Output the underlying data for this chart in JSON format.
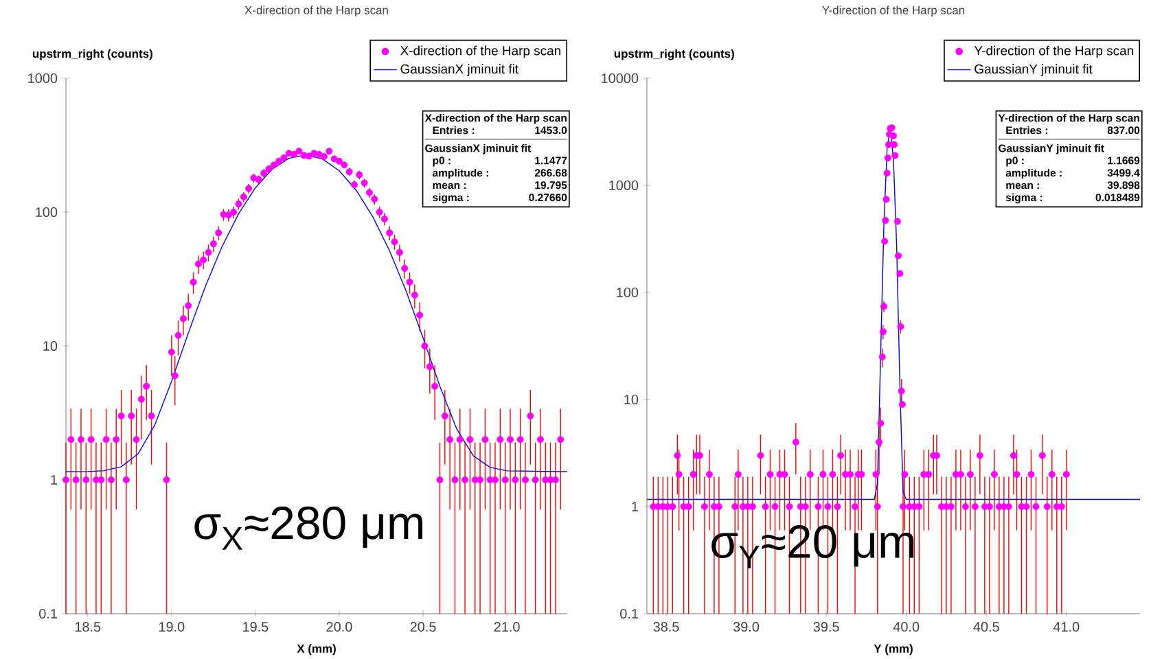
{
  "chart_data": [
    {
      "type": "scatter",
      "title": "X-direction of the Harp scan",
      "xlabel": "X (mm)",
      "ylabel": "upstrm_right (counts)",
      "log": true,
      "legend": "top right",
      "marker": "circle",
      "xlim": [
        18.37,
        21.36
      ],
      "ylim": [
        0.1,
        1000
      ],
      "xticks": [
        18.5,
        {
          "value": 19,
          "label": "19.0"
        },
        19.5,
        {
          "value": 20,
          "label": "20.0"
        },
        20.5,
        {
          "value": 21,
          "label": "21.0"
        }
      ],
      "yticks": [
        0.1,
        1,
        10,
        100,
        1000
      ],
      "annotations": [
        "X-direction of the Harp scan",
        "Entries :",
        "1453.0",
        "GaussianX jminuit fit",
        "p0 :",
        "1.1477",
        "amplitude :",
        "266.68",
        "mean :",
        "19.795",
        "sigma :",
        "0.27660",
        "σ$_{X}$≈280 μm"
      ],
      "series": [
        {
          "name": "X-direction of the Harp scan",
          "color": "#ff00ff",
          "x": [
            18.37,
            18.4,
            18.43,
            18.46,
            18.49,
            18.52,
            18.55,
            18.58,
            18.61,
            18.64,
            18.67,
            18.7,
            18.73,
            18.76,
            18.79,
            18.82,
            18.85,
            18.88,
            18.97,
            19.0,
            19.02,
            19.04,
            19.07,
            19.1,
            19.13,
            19.16,
            19.19,
            19.22,
            19.25,
            19.28,
            19.31,
            19.34,
            19.37,
            19.4,
            19.43,
            19.46,
            19.49,
            19.52,
            19.55,
            19.58,
            19.61,
            19.64,
            19.67,
            19.7,
            19.73,
            19.76,
            19.79,
            19.82,
            19.85,
            19.88,
            19.91,
            19.94,
            19.97,
            20.0,
            20.03,
            20.06,
            20.09,
            20.12,
            20.15,
            20.18,
            20.21,
            20.24,
            20.27,
            20.3,
            20.33,
            20.36,
            20.39,
            20.42,
            20.45,
            20.48,
            20.51,
            20.54,
            20.57,
            20.6,
            20.63,
            20.66,
            20.69,
            20.72,
            20.75,
            20.78,
            20.81,
            20.84,
            20.87,
            20.9,
            20.93,
            20.96,
            20.99,
            21.02,
            21.05,
            21.08,
            21.11,
            21.14,
            21.17,
            21.2,
            21.23,
            21.26,
            21.29,
            21.32
          ],
          "values": [
            1,
            2,
            1,
            2,
            1,
            2,
            1,
            1,
            2,
            1,
            2,
            3,
            1,
            3,
            2,
            4,
            5,
            3,
            1,
            9,
            6,
            12,
            16,
            20,
            30,
            41,
            44,
            50,
            58,
            70,
            96,
            95,
            100,
            115,
            130,
            150,
            180,
            175,
            195,
            210,
            225,
            240,
            255,
            275,
            270,
            285,
            265,
            262,
            275,
            270,
            260,
            285,
            250,
            240,
            225,
            200,
            160,
            190,
            165,
            140,
            125,
            100,
            89,
            70,
            60,
            50,
            38,
            30,
            24,
            17,
            10,
            7,
            5,
            1,
            3,
            2,
            1,
            2,
            1,
            2,
            1,
            1,
            2,
            1,
            1,
            2,
            1,
            2,
            1,
            2,
            1,
            3,
            1,
            2,
            1,
            1,
            1,
            2
          ],
          "errors": [
            0.9,
            1.4,
            0.9,
            1.4,
            0.9,
            1.4,
            0.9,
            0.9,
            1.4,
            0.9,
            1.4,
            1.7,
            0.9,
            1.7,
            1.4,
            2,
            2.2,
            1.7,
            0.9,
            3,
            2.4,
            3.5,
            4,
            4.5,
            5.5,
            6.4,
            6.6,
            7.1,
            7.6,
            8.4,
            9.8,
            9.7,
            10,
            10.7,
            11.4,
            12.2,
            13.4,
            13.2,
            14,
            14.5,
            null,
            null,
            null,
            null,
            null,
            null,
            null,
            null,
            null,
            null,
            null,
            null,
            null,
            null,
            null,
            14.1,
            12.6,
            13.8,
            12.8,
            11.8,
            11.2,
            10,
            9.4,
            8.4,
            7.7,
            7.1,
            6.2,
            5.5,
            4.9,
            4.1,
            3.2,
            2.6,
            2.2,
            0.9,
            1.7,
            1.4,
            0.9,
            1.4,
            0.9,
            1.4,
            0.9,
            0.9,
            1.4,
            0.9,
            0.9,
            1.4,
            0.9,
            1.4,
            0.9,
            1.4,
            0.9,
            1.7,
            0.9,
            1.4,
            0.9,
            0.9,
            0.9,
            1.4
          ]
        },
        {
          "name": "GaussianX jminuit fit",
          "type": "line",
          "marker": "none",
          "color": "#0000ff",
          "x": [
            18.37,
            18.5,
            18.6,
            18.7,
            18.8,
            18.9,
            19.0,
            19.1,
            19.2,
            19.3,
            19.4,
            19.5,
            19.6,
            19.7,
            19.8,
            19.9,
            20.0,
            20.1,
            20.2,
            20.3,
            20.4,
            20.5,
            20.6,
            20.7,
            20.8,
            20.9,
            21.0,
            21.36
          ],
          "values": [
            1.148,
            1.152,
            1.171,
            1.253,
            1.561,
            2.57,
            5.44,
            12.5,
            27.5,
            54.9,
            97.3,
            152.1,
            209.1,
            252.5,
            267.8,
            249.3,
            203.8,
            146.4,
            92.5,
            51.5,
            25.5,
            11.5,
            5.01,
            2.41,
            1.51,
            1.239,
            1.168,
            1.148
          ]
        }
      ]
    },
    {
      "type": "scatter",
      "title": "Y-direction of the Harp scan",
      "xlabel": "Y (mm)",
      "ylabel": "upstrm_right (counts)",
      "log": true,
      "legend": "top right",
      "marker": "circle",
      "xlim": [
        38.38,
        41.46
      ],
      "ylim": [
        0.1,
        10000
      ],
      "xticks": [
        38.5,
        {
          "value": 39,
          "label": "39.0"
        },
        39.5,
        {
          "value": 40,
          "label": "40.0"
        },
        40.5,
        {
          "value": 41,
          "label": "41.0"
        }
      ],
      "yticks": [
        0.1,
        1,
        10,
        100,
        1000,
        10000
      ],
      "annotations": [
        "Y-direction of the Harp scan",
        "Entries :",
        "837.00",
        "GaussianY jminuit fit",
        "p0 :",
        "1.1669",
        "amplitude :",
        "3499.4",
        "mean :",
        "39.898",
        "sigma :",
        "0.018489",
        "σ$_{Y}$≈20 μm"
      ],
      "series": [
        {
          "name": "Y-direction of the Harp scan",
          "color": "#ff00ff",
          "x": [
            38.42,
            38.45,
            38.48,
            38.51,
            38.54,
            38.57,
            38.58,
            38.61,
            38.64,
            38.67,
            38.69,
            38.71,
            38.74,
            38.77,
            38.8,
            38.83,
            38.93,
            38.95,
            38.98,
            39.01,
            39.04,
            39.09,
            39.12,
            39.15,
            39.18,
            39.21,
            39.24,
            39.27,
            39.31,
            39.34,
            39.37,
            39.4,
            39.45,
            39.48,
            39.51,
            39.54,
            39.57,
            39.59,
            39.62,
            39.65,
            39.68,
            39.7,
            39.72,
            39.81,
            39.82,
            39.83,
            39.84,
            39.85,
            39.855,
            39.86,
            39.865,
            39.87,
            39.875,
            39.88,
            39.885,
            39.89,
            39.895,
            39.9,
            39.91,
            39.92,
            39.925,
            39.93,
            39.945,
            39.95,
            39.96,
            39.965,
            39.97,
            39.975,
            39.98,
            39.99,
            40.02,
            40.05,
            40.08,
            40.11,
            40.14,
            40.17,
            40.19,
            40.22,
            40.25,
            40.28,
            40.31,
            40.34,
            40.37,
            40.4,
            40.43,
            40.46,
            40.49,
            40.52,
            40.55,
            40.58,
            40.61,
            40.64,
            40.67,
            40.69,
            40.72,
            40.75,
            40.78,
            40.81,
            40.85,
            40.88,
            40.91,
            40.94,
            40.97,
            41.0
          ],
          "values": [
            1,
            1,
            1,
            1,
            1,
            3,
            2,
            1,
            1,
            2,
            3,
            3,
            1,
            2,
            1,
            1,
            1,
            2,
            1,
            1,
            1,
            3,
            1,
            2,
            1,
            2,
            2,
            1,
            4,
            1,
            1,
            2,
            1,
            2,
            1,
            2,
            1,
            3,
            2,
            2,
            1,
            2,
            2,
            2,
            1,
            4,
            6,
            25,
            43,
            74,
            300,
            470,
            740,
            1300,
            1800,
            2400,
            3000,
            3400,
            3450,
            2900,
            2400,
            1900,
            460,
            220,
            150,
            48,
            12,
            9,
            1,
            2,
            1,
            1,
            1,
            2,
            2,
            3,
            3,
            1,
            1,
            1,
            2,
            2,
            1,
            2,
            1,
            3,
            1,
            1,
            2,
            1,
            1,
            1,
            3,
            2,
            1,
            1,
            2,
            1,
            3,
            1,
            2,
            1,
            1,
            2
          ],
          "errors": [
            0.9,
            0.9,
            0.9,
            0.9,
            0.9,
            1.7,
            1.4,
            0.9,
            0.9,
            1.4,
            1.7,
            1.7,
            0.9,
            1.4,
            0.9,
            0.9,
            0.9,
            1.4,
            0.9,
            0.9,
            0.9,
            1.7,
            0.9,
            1.4,
            0.9,
            1.4,
            1.4,
            0.9,
            2,
            0.9,
            0.9,
            1.4,
            0.9,
            1.4,
            0.9,
            1.4,
            0.9,
            1.7,
            1.4,
            1.4,
            0.9,
            1.4,
            1.4,
            1.4,
            0.9,
            2,
            2.4,
            5,
            6.6,
            8.6,
            null,
            null,
            null,
            null,
            null,
            null,
            null,
            null,
            null,
            null,
            null,
            null,
            null,
            null,
            null,
            6.9,
            3.5,
            null,
            0.9,
            1.4,
            0.9,
            0.9,
            0.9,
            1.4,
            1.4,
            1.7,
            1.7,
            0.9,
            0.9,
            0.9,
            1.4,
            1.4,
            0.9,
            1.4,
            0.9,
            1.7,
            0.9,
            0.9,
            1.4,
            0.9,
            0.9,
            0.9,
            1.7,
            1.4,
            0.9,
            0.9,
            1.4,
            0.9,
            1.7,
            0.9,
            1.4,
            0.9,
            0.9,
            1.4
          ]
        },
        {
          "name": "GaussianY jminuit fit",
          "type": "line",
          "marker": "none",
          "color": "#0000ff",
          "x": [
            38.38,
            39.8,
            39.82,
            39.84,
            39.86,
            39.88,
            39.9,
            39.92,
            39.94,
            39.96,
            39.98,
            40.0,
            41.46
          ],
          "values": [
            1.167,
            1.167,
            1.64,
            26.7,
            424,
            2180,
            3480,
            1725,
            266,
            13.8,
            1.36,
            1.167,
            1.167
          ]
        }
      ]
    }
  ]
}
